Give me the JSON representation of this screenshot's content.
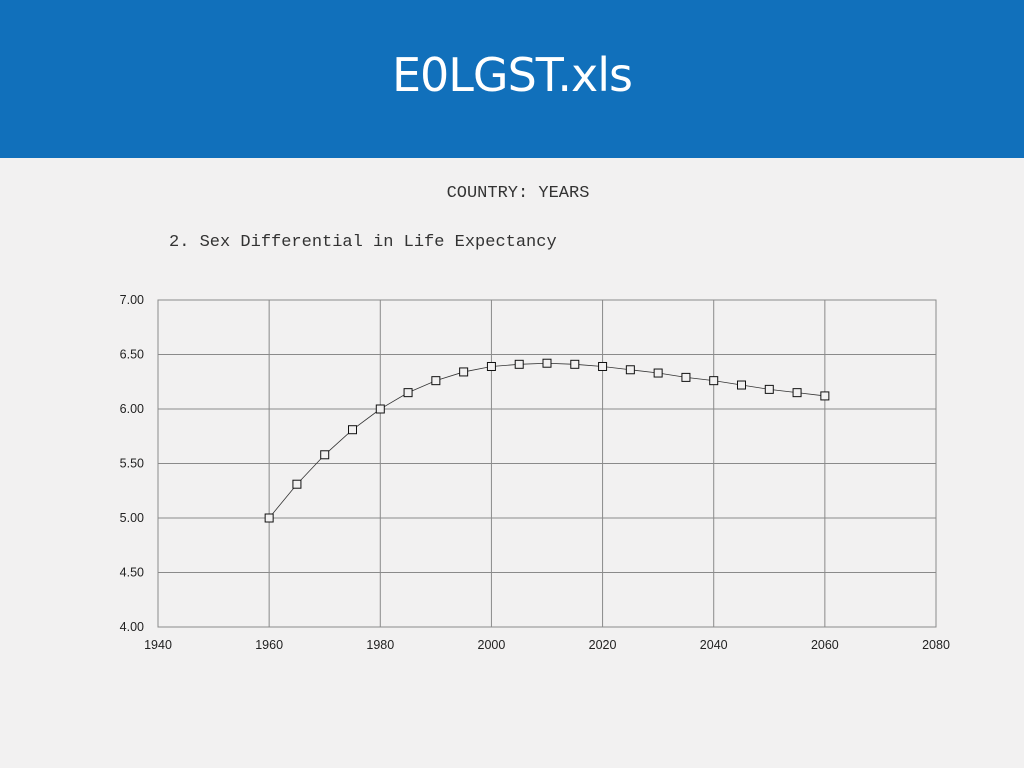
{
  "header": {
    "title": "E0LGST.xls"
  },
  "chart_data": {
    "type": "line",
    "subtitle": "COUNTRY: YEARS",
    "title": "2. Sex Differential in Life Expectancy",
    "xlabel": "",
    "ylabel": "",
    "xlim": [
      1940,
      2080
    ],
    "ylim": [
      4.0,
      7.0
    ],
    "xticks": [
      "1940",
      "1960",
      "1980",
      "2000",
      "2020",
      "2040",
      "2060",
      "2080"
    ],
    "yticks": [
      "4.00",
      "4.50",
      "5.00",
      "5.50",
      "6.00",
      "6.50",
      "7.00"
    ],
    "grid": true,
    "marker": "square",
    "series": [
      {
        "x": [
          1960,
          1965,
          1970,
          1975,
          1980,
          1985,
          1990,
          1995,
          2000,
          2005,
          2010,
          2015,
          2020,
          2025,
          2030,
          2035,
          2040,
          2045,
          2050,
          2055,
          2060
        ],
        "values": [
          5.0,
          5.31,
          5.58,
          5.81,
          6.0,
          6.15,
          6.26,
          6.34,
          6.39,
          6.41,
          6.42,
          6.41,
          6.39,
          6.36,
          6.33,
          6.29,
          6.26,
          6.22,
          6.18,
          6.15,
          6.12
        ]
      }
    ]
  }
}
